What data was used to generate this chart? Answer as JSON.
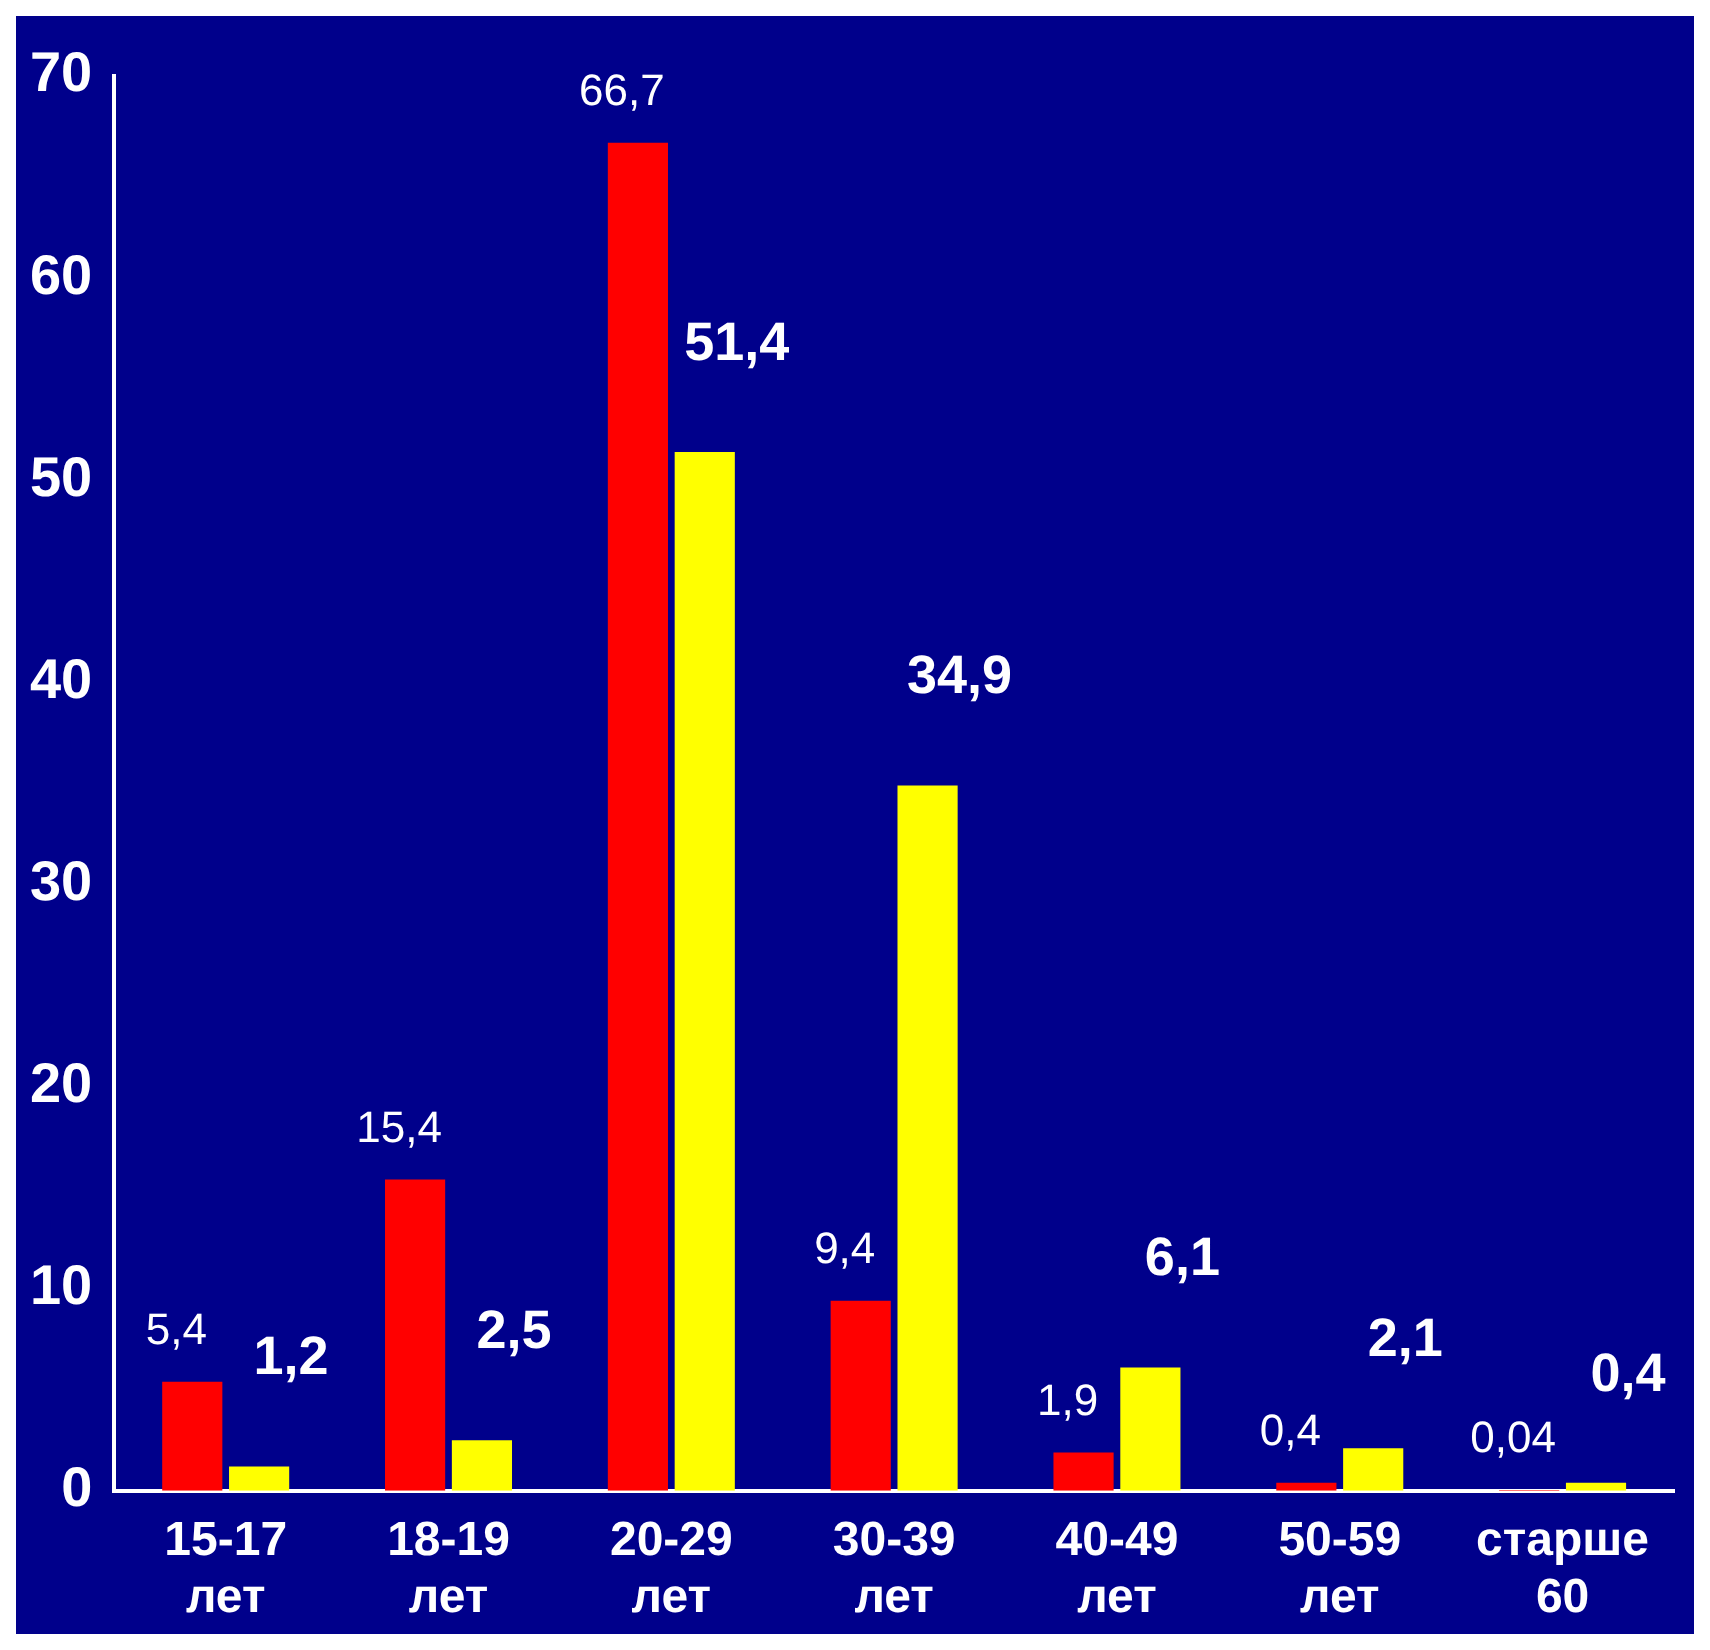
{
  "chart_data": {
    "type": "bar",
    "categories": [
      "15-17 лет",
      "18-19 лет",
      "20-29 лет",
      "30-39 лет",
      "40-49 лет",
      "50-59 лет",
      "старше 60"
    ],
    "series": [
      {
        "color": "#ff0000",
        "values": [
          5.4,
          15.4,
          66.7,
          9.4,
          1.9,
          0.4,
          0.04
        ],
        "value_labels": [
          "5,4",
          "15,4",
          "66,7",
          "9,4",
          "1,9",
          "0,4",
          "0,04"
        ]
      },
      {
        "color": "#ffff00",
        "values": [
          1.2,
          2.5,
          51.4,
          34.9,
          6.1,
          2.1,
          0.4
        ],
        "value_labels": [
          "1,2",
          "2,5",
          "51,4",
          "34,9",
          "6,1",
          "2,1",
          "0,4"
        ]
      }
    ],
    "ylim": [
      0,
      70
    ],
    "yticks": [
      0,
      10,
      20,
      30,
      40,
      50,
      60,
      70
    ],
    "grid": false,
    "legend": false
  }
}
